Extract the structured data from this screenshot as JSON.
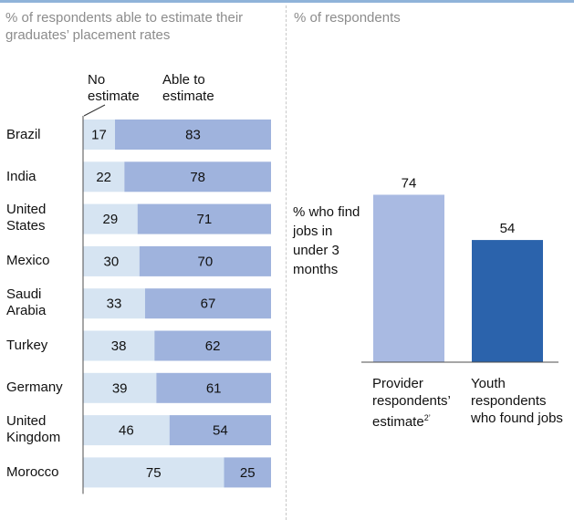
{
  "left_panel": {
    "title": "% of respondents able to estimate their graduates’ placement rates"
  },
  "right_panel": {
    "title": "% of respondents",
    "annotation": "% who find jobs in under 3 months"
  },
  "colors": {
    "no_estimate": "#d6e4f2",
    "able_to_estimate": "#9fb3dd",
    "provider": "#a9bae2",
    "youth": "#2b63ac",
    "axis": "#4d4d4d"
  },
  "chart_data": [
    {
      "type": "bar",
      "orientation": "horizontal",
      "stacked": true,
      "title": "% of respondents able to estimate their graduates’ placement rates",
      "categories": [
        "Brazil",
        "India",
        "United States",
        "Mexico",
        "Saudi Arabia",
        "Turkey",
        "Germany",
        "United Kingdom",
        "Morocco"
      ],
      "series": [
        {
          "name": "No estimate",
          "values": [
            17,
            22,
            29,
            30,
            33,
            38,
            39,
            46,
            75
          ]
        },
        {
          "name": "Able to estimate",
          "values": [
            83,
            78,
            71,
            70,
            67,
            62,
            61,
            54,
            25
          ]
        }
      ],
      "xlim": [
        0,
        100
      ]
    },
    {
      "type": "bar",
      "title": "% of respondents",
      "ylabel": "% who find jobs in under 3 months",
      "categories": [
        "Provider respondents’ estimate",
        "Youth respondents who found jobs"
      ],
      "category_superscripts": [
        "2’",
        ""
      ],
      "values": [
        74,
        54
      ],
      "ylim": [
        0,
        100
      ]
    }
  ]
}
